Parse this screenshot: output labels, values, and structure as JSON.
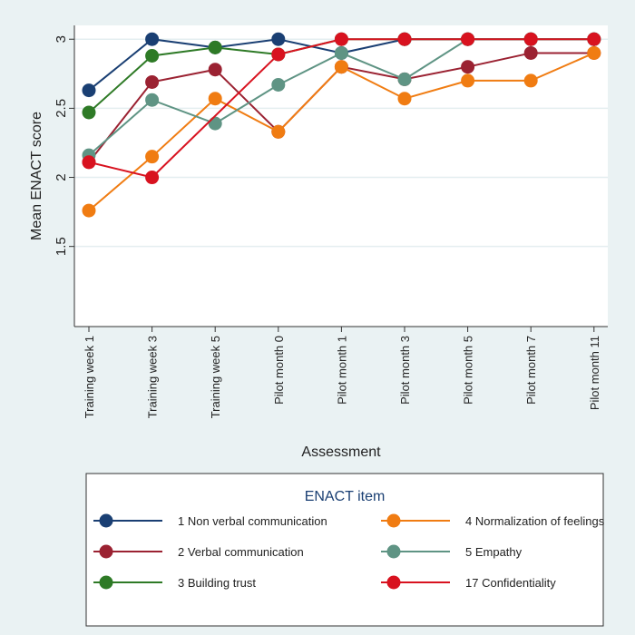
{
  "chart_data": {
    "type": "line",
    "xlabel": "Assessment",
    "ylabel": "Mean ENACT score",
    "ylim": [
      0.92,
      3.1
    ],
    "yticks": [
      1.5,
      2,
      2.5,
      3
    ],
    "ytick_labels": [
      "1.5",
      "2",
      "2.5",
      "3"
    ],
    "categories": [
      "Training week 1",
      "Training week 3",
      "Training week 5",
      "Pilot month 0",
      "Pilot month 1",
      "Pilot month 3",
      "Pilot month 5",
      "Pilot month 7",
      "Pilot month 11"
    ],
    "grid": true,
    "legend_title": "ENACT item",
    "legend_placement": "bottom",
    "series": [
      {
        "name": "1 Non verbal communication",
        "color": "#1a3f73",
        "values": [
          2.63,
          3,
          2.94,
          3,
          2.9,
          3,
          3,
          3,
          3
        ]
      },
      {
        "name": "2 Verbal communication",
        "color": "#9b2232",
        "values": [
          2.11,
          2.69,
          2.78,
          2.33,
          2.8,
          2.71,
          2.8,
          2.9,
          2.9
        ]
      },
      {
        "name": "3 Building trust",
        "color": "#2e7a26",
        "values": [
          2.47,
          2.88,
          2.94,
          2.89,
          3,
          3,
          3,
          3,
          3
        ]
      },
      {
        "name": "4 Normalization of feelings",
        "color": "#f07c12",
        "values": [
          1.76,
          2.15,
          2.57,
          2.33,
          2.8,
          2.57,
          2.7,
          2.7,
          2.9
        ]
      },
      {
        "name": "5 Empathy",
        "color": "#5f9484",
        "values": [
          2.16,
          2.56,
          2.39,
          2.67,
          2.9,
          2.71,
          3,
          3,
          3
        ]
      },
      {
        "name": "17 Confidentiality",
        "color": "#d8121f",
        "values": [
          2.11,
          2.0,
          null,
          2.89,
          3,
          3,
          3,
          3,
          3
        ]
      }
    ]
  }
}
